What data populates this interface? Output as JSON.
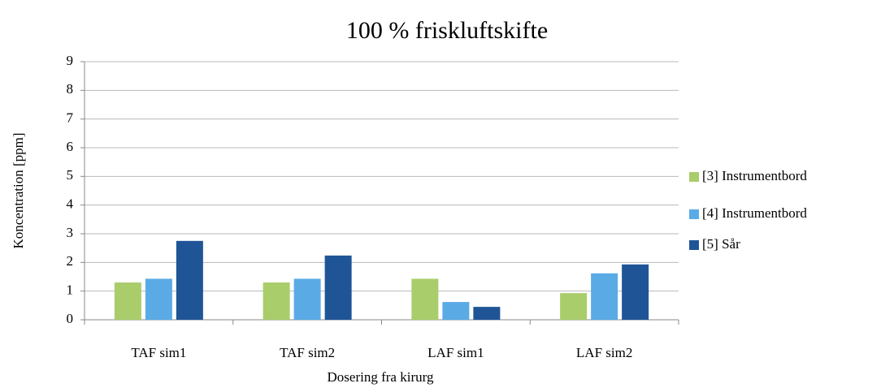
{
  "chart_data": {
    "type": "bar",
    "title": "100 % friskluftskifte",
    "x_label": "Dosering fra kirurg",
    "y_label": "Koncentration [ppm]",
    "categories": [
      "TAF sim1",
      "TAF sim2",
      "LAF sim1",
      "LAF sim2"
    ],
    "series": [
      {
        "name": "[3] Instrumentbord",
        "color": "#a9cd6b",
        "values": [
          1.3,
          1.3,
          1.43,
          0.93
        ]
      },
      {
        "name": "[4] Instrumentbord",
        "color": "#5aabe5",
        "values": [
          1.43,
          1.43,
          0.62,
          1.62
        ]
      },
      {
        "name": "[5] Sår",
        "color": "#1f5597",
        "values": [
          2.75,
          2.24,
          0.45,
          1.93
        ]
      }
    ],
    "ylim": [
      0,
      9
    ],
    "yticks": [
      0,
      1,
      2,
      3,
      4,
      5,
      6,
      7,
      8,
      9
    ],
    "grid": true,
    "legend": "right"
  }
}
